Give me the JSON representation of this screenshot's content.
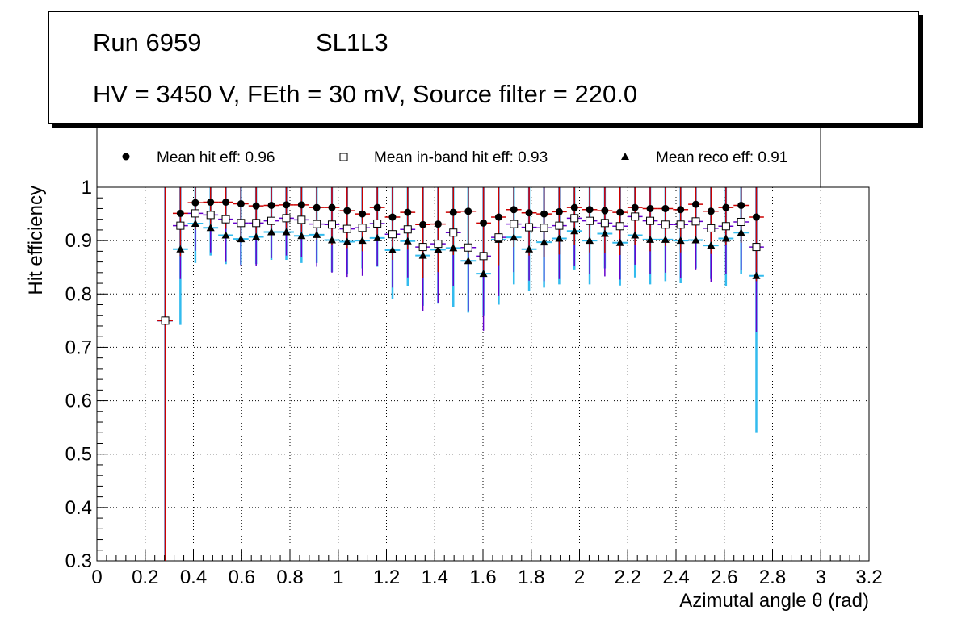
{
  "header": {
    "run": "Run 6959",
    "layer": "SL1L3",
    "conditions": "HV = 3450 V, FEth = 30 mV, Source filter = 220.0"
  },
  "legend": {
    "hit": "Mean hit  eff: 0.96",
    "inband": "Mean in-band hit eff: 0.93",
    "reco": "Mean reco eff: 0.91"
  },
  "colors": {
    "hit_error": "#cc0000",
    "inband_error": "#6600cc",
    "reco_error": "#33bbee",
    "grid": "#000000",
    "marker": "#000000"
  },
  "chart_data": {
    "type": "scatter",
    "title": "",
    "xlabel": "Azimutal angle θ (rad)",
    "ylabel": "Hit efficiency",
    "xlim": [
      0,
      3.2
    ],
    "ylim": [
      0.3,
      1.0
    ],
    "grid": true,
    "legend_position": "top",
    "xticks": [
      "0",
      "0.2",
      "0.4",
      "0.6",
      "0.8",
      "1",
      "1.2",
      "1.4",
      "1.6",
      "1.8",
      "2",
      "2.2",
      "2.4",
      "2.6",
      "2.8",
      "3",
      "3.2"
    ],
    "yticks": [
      "0.3",
      "0.4",
      "0.5",
      "0.6",
      "0.7",
      "0.8",
      "0.9",
      "1"
    ],
    "x_halfwidth": 0.0314,
    "x": [
      0.283,
      0.346,
      0.408,
      0.471,
      0.534,
      0.597,
      0.66,
      0.723,
      0.785,
      0.848,
      0.911,
      0.974,
      1.037,
      1.1,
      1.162,
      1.225,
      1.288,
      1.351,
      1.414,
      1.477,
      1.539,
      1.602,
      1.665,
      1.728,
      1.791,
      1.853,
      1.916,
      1.979,
      2.042,
      2.105,
      2.168,
      2.23,
      2.293,
      2.356,
      2.419,
      2.482,
      2.545,
      2.607,
      2.67,
      2.733
    ],
    "series": [
      {
        "name": "Mean hit  eff: 0.96",
        "marker": "circle",
        "values": [
          0.75,
          0.951,
          0.971,
          0.972,
          0.972,
          0.969,
          0.965,
          0.966,
          0.967,
          0.967,
          0.962,
          0.962,
          0.956,
          0.95,
          0.962,
          0.944,
          0.953,
          0.93,
          0.931,
          0.953,
          0.955,
          0.933,
          0.944,
          0.958,
          0.952,
          0.95,
          0.954,
          0.962,
          0.958,
          0.956,
          0.953,
          0.962,
          0.96,
          0.96,
          0.958,
          0.968,
          0.955,
          0.962,
          0.966,
          0.944
        ],
        "err_low": [
          0.45,
          0.08,
          0.05,
          0.05,
          0.05,
          0.06,
          0.06,
          0.05,
          0.05,
          0.05,
          0.06,
          0.07,
          0.07,
          0.07,
          0.06,
          0.08,
          0.07,
          0.1,
          0.09,
          0.08,
          0.08,
          0.1,
          0.09,
          0.07,
          0.08,
          0.08,
          0.08,
          0.07,
          0.08,
          0.08,
          0.08,
          0.07,
          0.08,
          0.07,
          0.08,
          0.07,
          0.08,
          0.07,
          0.07,
          0.12
        ]
      },
      {
        "name": "Mean in-band hit eff: 0.93",
        "marker": "open-square",
        "values": [
          0.75,
          0.928,
          0.951,
          0.948,
          0.94,
          0.933,
          0.933,
          0.937,
          0.942,
          0.939,
          0.931,
          0.93,
          0.922,
          0.924,
          0.932,
          0.912,
          0.921,
          0.888,
          0.894,
          0.915,
          0.887,
          0.871,
          0.906,
          0.931,
          0.925,
          0.924,
          0.928,
          0.942,
          0.937,
          0.933,
          0.927,
          0.945,
          0.937,
          0.93,
          0.93,
          0.936,
          0.923,
          0.927,
          0.935,
          0.888
        ],
        "err_low": [
          0.45,
          0.1,
          0.07,
          0.07,
          0.08,
          0.08,
          0.08,
          0.07,
          0.07,
          0.07,
          0.08,
          0.09,
          0.09,
          0.09,
          0.08,
          0.1,
          0.09,
          0.12,
          0.11,
          0.1,
          0.12,
          0.14,
          0.11,
          0.09,
          0.1,
          0.1,
          0.1,
          0.09,
          0.1,
          0.1,
          0.1,
          0.09,
          0.1,
          0.09,
          0.1,
          0.09,
          0.1,
          0.09,
          0.09,
          0.16
        ]
      },
      {
        "name": "Mean reco eff: 0.91",
        "marker": "triangle",
        "values": [
          0.75,
          0.884,
          0.932,
          0.924,
          0.91,
          0.903,
          0.907,
          0.916,
          0.916,
          0.909,
          0.911,
          0.901,
          0.898,
          0.9,
          0.905,
          0.882,
          0.899,
          0.872,
          0.883,
          0.886,
          0.862,
          0.838,
          0.902,
          0.906,
          0.884,
          0.897,
          0.904,
          0.918,
          0.9,
          0.913,
          0.896,
          0.91,
          0.902,
          0.902,
          0.9,
          0.901,
          0.891,
          0.904,
          0.915,
          0.834
        ]
      }
    ],
    "reco_bar_low": [
      0.3,
      0.742,
      0.858,
      0.872,
      0.856,
      0.855,
      0.856,
      0.864,
      0.864,
      0.858,
      0.858,
      0.841,
      0.838,
      0.848,
      0.851,
      0.791,
      0.815,
      0.778,
      0.782,
      0.775,
      0.765,
      0.76,
      0.78,
      0.818,
      0.806,
      0.812,
      0.818,
      0.846,
      0.818,
      0.848,
      0.816,
      0.831,
      0.818,
      0.824,
      0.82,
      0.848,
      0.828,
      0.814,
      0.838,
      0.541
    ]
  }
}
